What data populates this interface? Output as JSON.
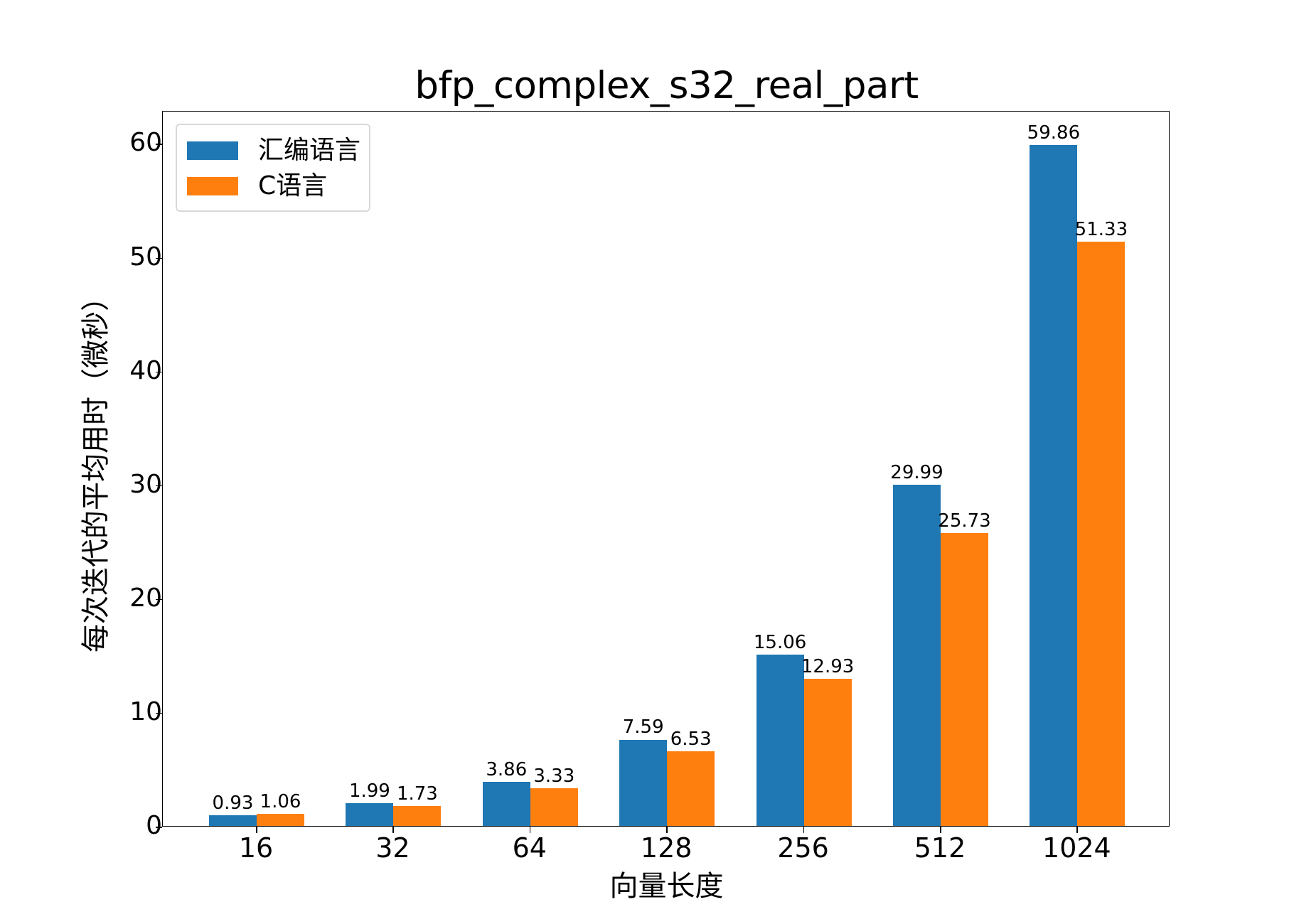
{
  "chart_data": {
    "type": "bar",
    "title": "bfp_complex_s32_real_part",
    "xlabel": "向量长度",
    "ylabel": "每次迭代的平均用时（微秒）",
    "categories": [
      "16",
      "32",
      "64",
      "128",
      "256",
      "512",
      "1024"
    ],
    "series": [
      {
        "name": "汇编语言",
        "color": "#1f77b4",
        "values": [
          0.93,
          1.99,
          3.86,
          7.59,
          15.06,
          29.99,
          59.86
        ]
      },
      {
        "name": "C语言",
        "color": "#ff7f0e",
        "values": [
          1.06,
          1.73,
          3.33,
          6.53,
          12.93,
          25.73,
          51.33
        ]
      }
    ],
    "ylim": [
      0,
      62.9
    ],
    "yticks": [
      0,
      10,
      20,
      30,
      40,
      50,
      60
    ],
    "grid": false,
    "legend_position": "upper left"
  }
}
